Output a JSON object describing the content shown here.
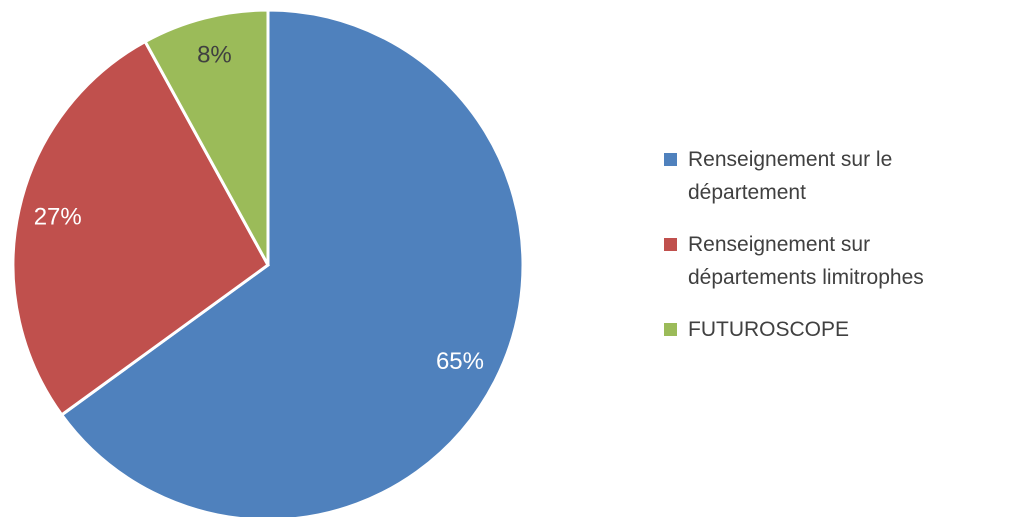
{
  "chart_data": {
    "type": "pie",
    "categories": [
      "Renseignement sur le département",
      "Renseignement sur départements limitrophes",
      "FUTUROSCOPE"
    ],
    "values": [
      65,
      27,
      8
    ],
    "value_labels": [
      "65%",
      "27%",
      "8%"
    ],
    "colors": [
      "#4f81bd",
      "#c0504d",
      "#9bbb59"
    ],
    "label_colors": [
      "#ffffff",
      "#ffffff",
      "#404040"
    ],
    "legend": "right"
  }
}
